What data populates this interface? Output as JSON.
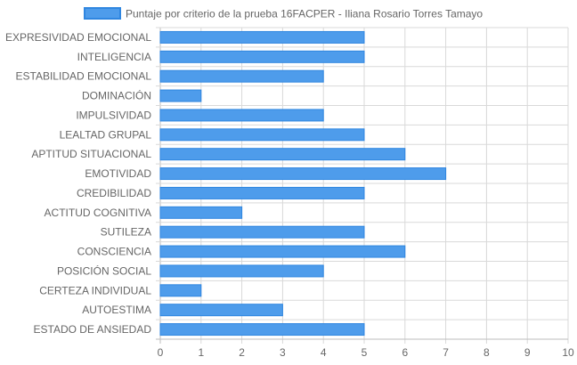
{
  "chart_data": {
    "type": "bar",
    "orientation": "horizontal",
    "legend": {
      "position": "top",
      "label": "Puntaje por criterio de la prueba 16FACPER - Iliana Rosario Torres Tamayo"
    },
    "categories": [
      "EXPRESIVIDAD EMOCIONAL",
      "INTELIGENCIA",
      "ESTABILIDAD EMOCIONAL",
      "DOMINACIÓN",
      "IMPULSIVIDAD",
      "LEALTAD GRUPAL",
      "APTITUD SITUACIONAL",
      "EMOTIVIDAD",
      "CREDIBILIDAD",
      "ACTITUD COGNITIVA",
      "SUTILEZA",
      "CONSCIENCIA",
      "POSICIÓN SOCIAL",
      "CERTEZA INDIVIDUAL",
      "AUTOESTIMA",
      "ESTADO DE ANSIEDAD"
    ],
    "series": [
      {
        "name": "Puntaje por criterio de la prueba 16FACPER - Iliana Rosario Torres Tamayo",
        "values": [
          5,
          5,
          4,
          1,
          4,
          5,
          6,
          7,
          5,
          2,
          5,
          6,
          4,
          1,
          3,
          5
        ]
      }
    ],
    "xlim": [
      0,
      10
    ],
    "xticks": [
      "0",
      "1",
      "2",
      "3",
      "4",
      "5",
      "6",
      "7",
      "8",
      "9",
      "10"
    ],
    "grid": true,
    "colors": {
      "bar_fill": "#4e9ceb",
      "bar_stroke": "#2f86e0",
      "grid": "#d9d9d9",
      "text": "#666666"
    }
  }
}
